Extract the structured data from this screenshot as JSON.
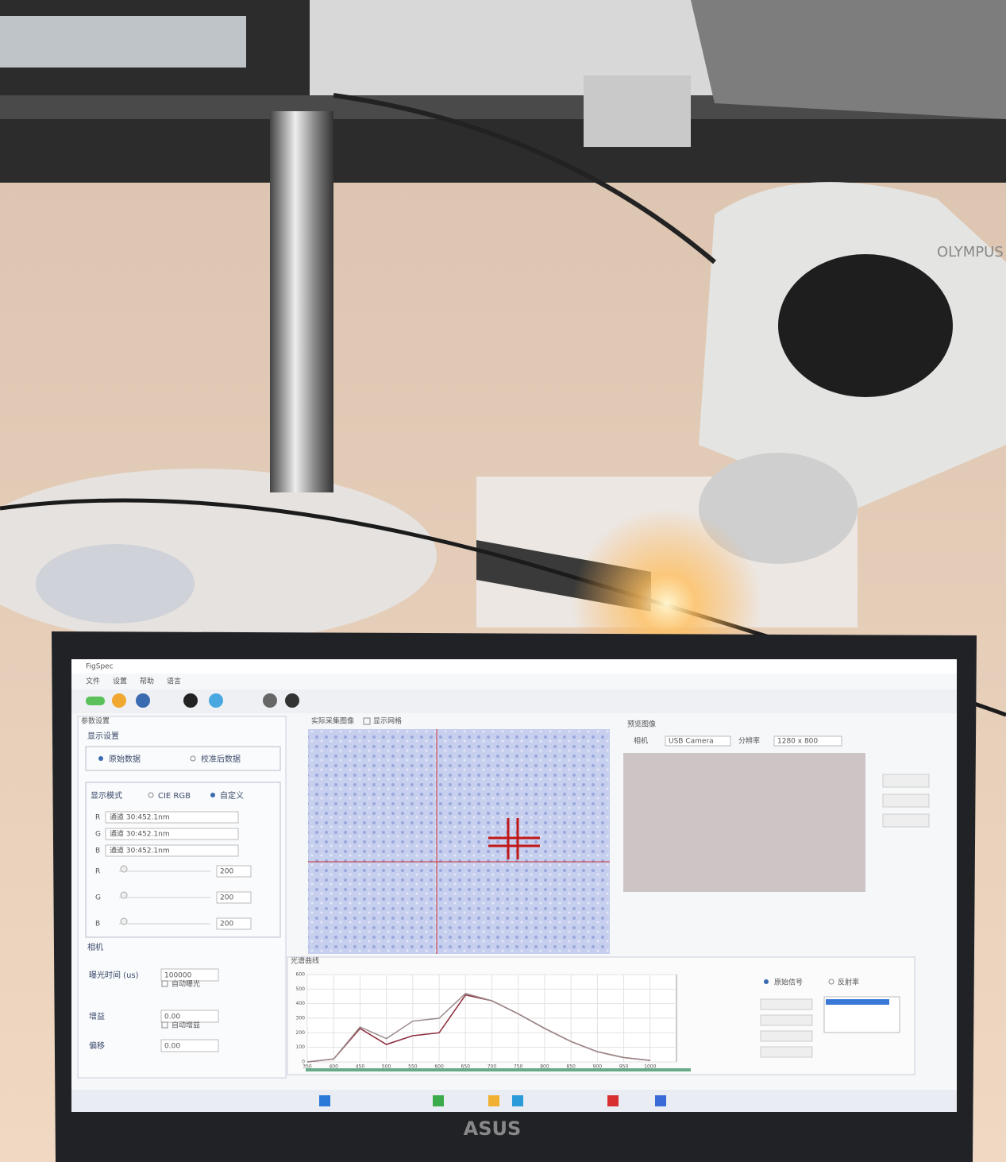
{
  "photo": {
    "microscope_brand": "OLYMPUS",
    "laptop_brand": "ASUS"
  },
  "app": {
    "title": "FigSpec",
    "menu": [
      "文件",
      "设置",
      "帮助",
      "语言"
    ],
    "left_panel": {
      "header": "参数设置",
      "display_settings": "显示设置",
      "data_options": [
        "原始数据",
        "校准后数据"
      ],
      "display_mode": "显示模式",
      "mode_options": [
        "CIE RGB",
        "自定义"
      ],
      "channels": [
        {
          "label": "R",
          "value": "通道 30:452.1nm"
        },
        {
          "label": "G",
          "value": "通道 30:452.1nm"
        },
        {
          "label": "B",
          "value": "通道 30:452.1nm"
        }
      ],
      "sliders": [
        {
          "label": "R",
          "value": "200"
        },
        {
          "label": "G",
          "value": "200"
        },
        {
          "label": "B",
          "value": "200"
        }
      ],
      "camera": "相机",
      "exposure_label": "曝光时间 (us)",
      "exposure_value": "100000",
      "auto_exposure": "自动曝光",
      "gain_label": "增益",
      "gain_value": "0.00",
      "auto_gain": "自动增益",
      "offset_label": "偏移",
      "offset_value": "0.00"
    },
    "image_panel": {
      "title": "实际采集图像",
      "grid_option": "显示网格"
    },
    "preview_panel": {
      "title": "预览图像",
      "camera_label": "相机",
      "camera_value": "USB Camera",
      "resolution_label": "分辨率",
      "resolution_value": "1280 x 800"
    },
    "spectrum_panel": {
      "title": "光谱曲线",
      "xlim": [
        350,
        1050
      ],
      "ylim": [
        0,
        600
      ],
      "xticks": [
        350,
        400,
        450,
        500,
        550,
        600,
        650,
        700,
        750,
        800,
        850,
        900,
        950,
        1000
      ],
      "yticks": [
        0,
        100,
        200,
        300,
        400,
        500,
        600
      ],
      "x": [
        350,
        400,
        450,
        500,
        550,
        600,
        650,
        700,
        750,
        800,
        850,
        900,
        950,
        1000
      ],
      "series": [
        {
          "color": "#8b2a3a",
          "values": [
            0,
            20,
            230,
            120,
            180,
            200,
            460,
            420,
            330,
            230,
            140,
            70,
            30,
            10
          ]
        },
        {
          "color": "#9a8a8a",
          "values": [
            0,
            20,
            240,
            160,
            280,
            300,
            470,
            420,
            330,
            230,
            140,
            70,
            30,
            10
          ]
        }
      ],
      "signal_options": [
        "原始信号",
        "反射率"
      ]
    }
  }
}
